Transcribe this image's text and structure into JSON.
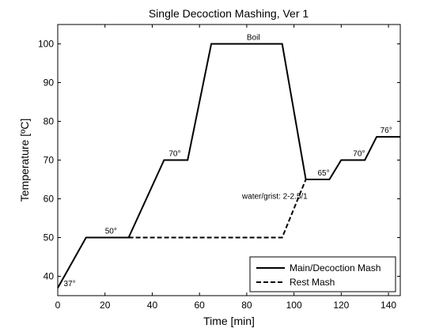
{
  "chart_data": {
    "type": "line",
    "title": "Single Decoction Mashing, Ver 1",
    "xlabel": "Time [min]",
    "ylabel": "Temperature [ºC]",
    "xlim": [
      0,
      145
    ],
    "ylim": [
      35,
      105
    ],
    "xticks": [
      0,
      20,
      40,
      60,
      80,
      100,
      120,
      140
    ],
    "yticks": [
      40,
      50,
      60,
      70,
      80,
      90,
      100
    ],
    "grid": false,
    "legend_position": "bottom-right",
    "series": [
      {
        "name": "Main/Decoction Mash",
        "style": "solid",
        "color": "#000000",
        "x": [
          0,
          12,
          30,
          45,
          55,
          65,
          95,
          105,
          115,
          120,
          130,
          135,
          145
        ],
        "y": [
          37,
          50,
          50,
          70,
          70,
          100,
          100,
          65,
          65,
          70,
          70,
          76,
          76
        ]
      },
      {
        "name": "Rest Mash",
        "style": "dashed",
        "color": "#000000",
        "x": [
          30,
          95,
          105
        ],
        "y": [
          50,
          50,
          65
        ]
      }
    ],
    "annotations": [
      {
        "text": "37°",
        "x": 2.5,
        "y": 37.5
      },
      {
        "text": "50°",
        "x": 20,
        "y": 51
      },
      {
        "text": "70°",
        "x": 47,
        "y": 71
      },
      {
        "text": "Boil",
        "x": 80,
        "y": 101
      },
      {
        "text": "water/grist: 2-2.5/1",
        "x": 78,
        "y": 60
      },
      {
        "text": "65°",
        "x": 110,
        "y": 66
      },
      {
        "text": "70°",
        "x": 125,
        "y": 71
      },
      {
        "text": "76°",
        "x": 136.5,
        "y": 77
      }
    ]
  }
}
